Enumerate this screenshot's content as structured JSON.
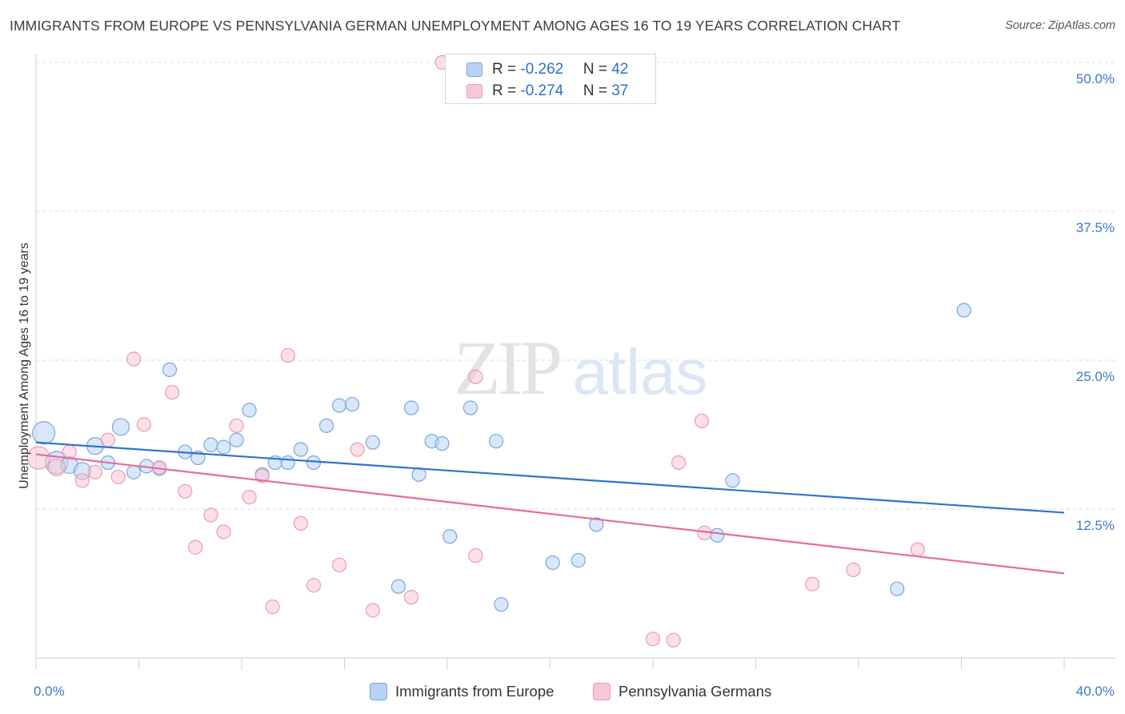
{
  "title": "IMMIGRANTS FROM EUROPE VS PENNSYLVANIA GERMAN UNEMPLOYMENT AMONG AGES 16 TO 19 YEARS CORRELATION CHART",
  "source": "Source: ZipAtlas.com",
  "watermark": {
    "part1": "ZIP",
    "part2": "atlas"
  },
  "colors": {
    "blue_fill": "#b8d3f5",
    "blue_stroke": "#7aa6df",
    "blue_line": "#2f72d0",
    "pink_fill": "#f8c6d6",
    "pink_stroke": "#ec9ab5",
    "pink_line": "#e76b99",
    "tick_label": "#3a78c9",
    "grid": "#d9d9d9"
  },
  "stats": [
    {
      "r_label": "R = ",
      "r_value": "-0.262",
      "n_label": "N = ",
      "n_value": "42",
      "series": "blue"
    },
    {
      "r_label": "R = ",
      "r_value": "-0.274",
      "n_label": "N = ",
      "n_value": "37",
      "series": "pink"
    }
  ],
  "legend": [
    {
      "label": "Immigrants from Europe",
      "series": "blue"
    },
    {
      "label": "Pennsylvania Germans",
      "series": "pink"
    }
  ],
  "chart_data": {
    "type": "scatter",
    "xlabel": "",
    "ylabel": "Unemployment Among Ages 16 to 19 years",
    "xlim": [
      0,
      40
    ],
    "ylim": [
      0,
      50
    ],
    "x_tick_labels": [
      "0.0%",
      "40.0%"
    ],
    "y_ticks": [
      12.5,
      25.0,
      37.5,
      50.0
    ],
    "y_tick_labels": [
      "12.5%",
      "25.0%",
      "37.5%",
      "50.0%"
    ],
    "grid": true,
    "series": [
      {
        "name": "Immigrants from Europe",
        "color": "blue",
        "points": [
          {
            "x": 0.3,
            "y": 18.9,
            "s": 3
          },
          {
            "x": 0.8,
            "y": 16.4,
            "s": 3
          },
          {
            "x": 1.3,
            "y": 16.2,
            "s": 2
          },
          {
            "x": 1.8,
            "y": 15.7,
            "s": 2
          },
          {
            "x": 2.3,
            "y": 17.8,
            "s": 2
          },
          {
            "x": 2.8,
            "y": 16.4,
            "s": 1
          },
          {
            "x": 3.3,
            "y": 19.4,
            "s": 2
          },
          {
            "x": 3.8,
            "y": 15.6,
            "s": 1
          },
          {
            "x": 4.3,
            "y": 16.1,
            "s": 1
          },
          {
            "x": 4.8,
            "y": 15.9,
            "s": 1
          },
          {
            "x": 5.2,
            "y": 24.2,
            "s": 1
          },
          {
            "x": 5.8,
            "y": 17.3,
            "s": 1
          },
          {
            "x": 6.3,
            "y": 16.8,
            "s": 1
          },
          {
            "x": 6.8,
            "y": 17.9,
            "s": 1
          },
          {
            "x": 7.3,
            "y": 17.7,
            "s": 1
          },
          {
            "x": 7.8,
            "y": 18.3,
            "s": 1
          },
          {
            "x": 8.3,
            "y": 20.8,
            "s": 1
          },
          {
            "x": 8.8,
            "y": 15.4,
            "s": 1
          },
          {
            "x": 9.3,
            "y": 16.4,
            "s": 1
          },
          {
            "x": 9.8,
            "y": 16.4,
            "s": 1
          },
          {
            "x": 10.3,
            "y": 17.5,
            "s": 1
          },
          {
            "x": 10.8,
            "y": 16.4,
            "s": 1
          },
          {
            "x": 11.3,
            "y": 19.5,
            "s": 1
          },
          {
            "x": 11.8,
            "y": 21.2,
            "s": 1
          },
          {
            "x": 12.3,
            "y": 21.3,
            "s": 1
          },
          {
            "x": 13.1,
            "y": 18.1,
            "s": 1
          },
          {
            "x": 14.1,
            "y": 6.0,
            "s": 1
          },
          {
            "x": 14.6,
            "y": 21.0,
            "s": 1
          },
          {
            "x": 14.9,
            "y": 15.4,
            "s": 1
          },
          {
            "x": 15.4,
            "y": 18.2,
            "s": 1
          },
          {
            "x": 15.8,
            "y": 18.0,
            "s": 1
          },
          {
            "x": 16.1,
            "y": 10.2,
            "s": 1
          },
          {
            "x": 16.9,
            "y": 21.0,
            "s": 1
          },
          {
            "x": 17.9,
            "y": 18.2,
            "s": 1
          },
          {
            "x": 18.1,
            "y": 4.5,
            "s": 1
          },
          {
            "x": 20.1,
            "y": 8.0,
            "s": 1
          },
          {
            "x": 21.1,
            "y": 8.2,
            "s": 1
          },
          {
            "x": 21.8,
            "y": 11.2,
            "s": 1
          },
          {
            "x": 26.5,
            "y": 10.3,
            "s": 1
          },
          {
            "x": 27.1,
            "y": 14.9,
            "s": 1
          },
          {
            "x": 33.5,
            "y": 5.8,
            "s": 1
          },
          {
            "x": 36.1,
            "y": 29.2,
            "s": 1
          }
        ],
        "trend": {
          "x": [
            0,
            40
          ],
          "y": [
            18.1,
            12.2
          ]
        }
      },
      {
        "name": "Pennsylvania Germans",
        "color": "pink",
        "points": [
          {
            "x": 0.1,
            "y": 16.8,
            "s": 3
          },
          {
            "x": 0.8,
            "y": 16.0,
            "s": 2
          },
          {
            "x": 1.3,
            "y": 17.3,
            "s": 1
          },
          {
            "x": 1.8,
            "y": 14.9,
            "s": 1
          },
          {
            "x": 2.3,
            "y": 15.6,
            "s": 1
          },
          {
            "x": 2.8,
            "y": 18.3,
            "s": 1
          },
          {
            "x": 3.2,
            "y": 15.2,
            "s": 1
          },
          {
            "x": 3.8,
            "y": 25.1,
            "s": 1
          },
          {
            "x": 4.2,
            "y": 19.6,
            "s": 1
          },
          {
            "x": 4.8,
            "y": 16.0,
            "s": 1
          },
          {
            "x": 5.3,
            "y": 22.3,
            "s": 1
          },
          {
            "x": 5.8,
            "y": 14.0,
            "s": 1
          },
          {
            "x": 6.2,
            "y": 9.3,
            "s": 1
          },
          {
            "x": 6.8,
            "y": 12.0,
            "s": 1
          },
          {
            "x": 7.3,
            "y": 10.6,
            "s": 1
          },
          {
            "x": 7.8,
            "y": 19.5,
            "s": 1
          },
          {
            "x": 8.3,
            "y": 13.5,
            "s": 1
          },
          {
            "x": 8.8,
            "y": 15.3,
            "s": 1
          },
          {
            "x": 9.2,
            "y": 4.3,
            "s": 1
          },
          {
            "x": 9.8,
            "y": 25.4,
            "s": 1
          },
          {
            "x": 10.3,
            "y": 11.3,
            "s": 1
          },
          {
            "x": 10.8,
            "y": 6.1,
            "s": 1
          },
          {
            "x": 11.8,
            "y": 7.8,
            "s": 1
          },
          {
            "x": 12.5,
            "y": 17.5,
            "s": 1
          },
          {
            "x": 13.1,
            "y": 4.0,
            "s": 1
          },
          {
            "x": 14.6,
            "y": 5.1,
            "s": 1
          },
          {
            "x": 15.8,
            "y": 50.0,
            "s": 1
          },
          {
            "x": 17.1,
            "y": 23.6,
            "s": 1
          },
          {
            "x": 17.1,
            "y": 8.6,
            "s": 1
          },
          {
            "x": 24.0,
            "y": 1.6,
            "s": 1
          },
          {
            "x": 24.8,
            "y": 1.5,
            "s": 1
          },
          {
            "x": 25.0,
            "y": 16.4,
            "s": 1
          },
          {
            "x": 25.9,
            "y": 19.9,
            "s": 1
          },
          {
            "x": 26.0,
            "y": 10.5,
            "s": 1
          },
          {
            "x": 30.2,
            "y": 6.2,
            "s": 1
          },
          {
            "x": 31.8,
            "y": 7.4,
            "s": 1
          },
          {
            "x": 34.3,
            "y": 9.1,
            "s": 1
          }
        ],
        "trend": {
          "x": [
            0,
            40
          ],
          "y": [
            17.1,
            7.1
          ]
        }
      }
    ]
  }
}
